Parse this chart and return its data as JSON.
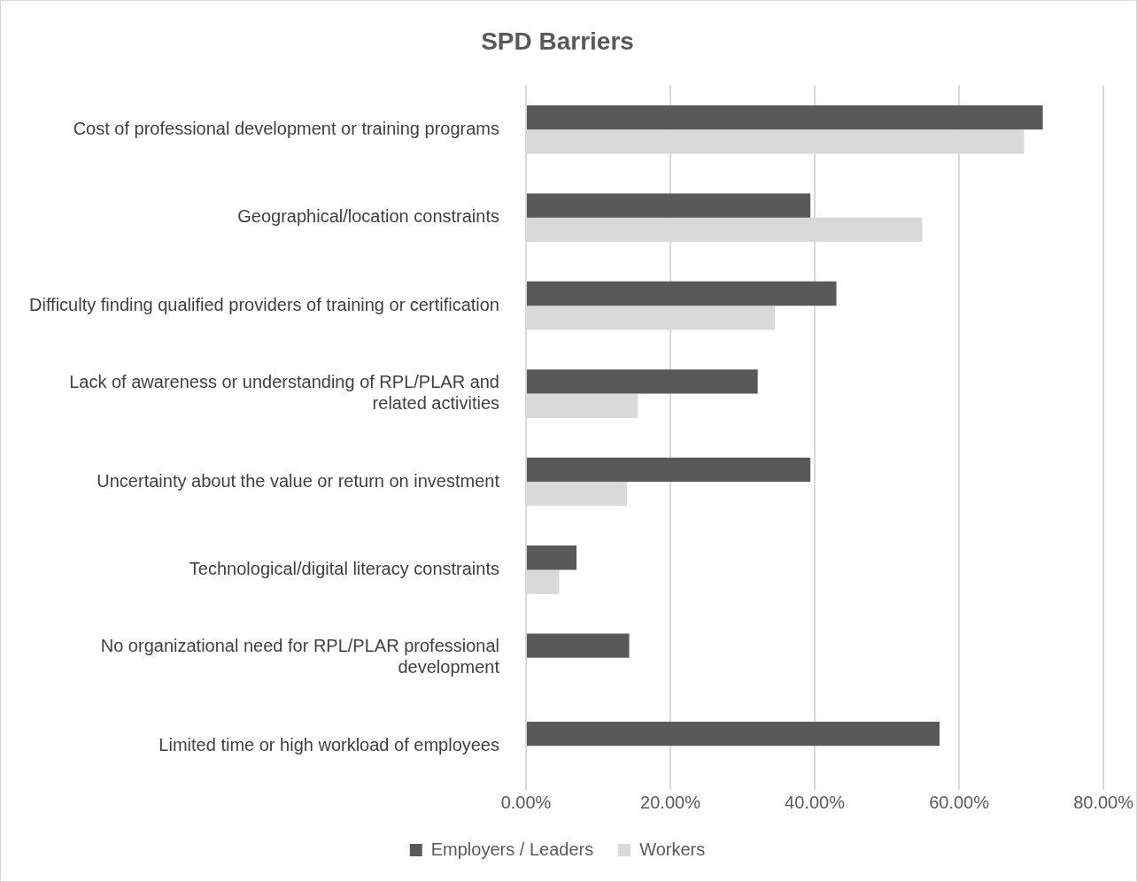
{
  "chart_data": {
    "type": "bar",
    "orientation": "horizontal",
    "title": "SPD Barriers",
    "categories": [
      "Cost of professional development or training programs",
      "Geographical/location constraints",
      "Difficulty finding qualified providers of training or certification",
      "Lack of awareness or understanding of RPL/PLAR and related activities",
      "Uncertainty about the value or return on investment",
      "Technological/digital literacy constraints",
      "No organizational need for RPL/PLAR professional development",
      "Limited time or high workload of employees"
    ],
    "series": [
      {
        "name": "Employers / Leaders",
        "color": "#595959",
        "values": [
          71.6,
          39.4,
          43.0,
          32.1,
          39.4,
          7.0,
          14.3,
          57.3
        ]
      },
      {
        "name": "Workers",
        "color": "#d9d9d9",
        "values": [
          69.0,
          54.9,
          34.5,
          15.5,
          14.0,
          4.6,
          null,
          null
        ]
      }
    ],
    "xlim": [
      0,
      80
    ],
    "xticks": [
      {
        "value": 0,
        "label": "0.00%"
      },
      {
        "value": 20,
        "label": "20.00%"
      },
      {
        "value": 40,
        "label": "40.00%"
      },
      {
        "value": 60,
        "label": "60.00%"
      },
      {
        "value": 80,
        "label": "80.00%"
      }
    ],
    "grid": "x",
    "legend": "bottom"
  }
}
